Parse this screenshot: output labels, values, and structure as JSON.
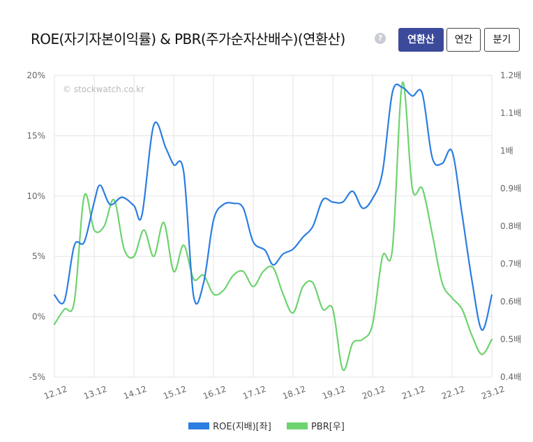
{
  "header": {
    "title": "ROE(자기자본이익률) & PBR(주가순자산배수)(연환산)",
    "help_glyph": "?",
    "buttons": [
      {
        "label": "연환산",
        "active": true
      },
      {
        "label": "연간",
        "active": false
      },
      {
        "label": "분기",
        "active": false
      }
    ]
  },
  "watermark": "© stockwatch.co.kr",
  "colors": {
    "roe": "#2a7de1",
    "pbr": "#6dd36e",
    "grid": "#e3e3e3",
    "axis_text": "#666666"
  },
  "chart_data": {
    "type": "line",
    "x_ticks": [
      "12.12",
      "13.12",
      "14.12",
      "15.12",
      "16.12",
      "17.12",
      "18.12",
      "19.12",
      "20.12",
      "21.12",
      "22.12",
      "23.12"
    ],
    "y_left": {
      "min": -5,
      "max": 20,
      "ticks": [
        -5,
        0,
        5,
        10,
        15,
        20
      ],
      "tick_labels": [
        "-5%",
        "0%",
        "5%",
        "10%",
        "15%",
        "20%"
      ]
    },
    "y_right": {
      "min": 0.4,
      "max": 1.2,
      "ticks": [
        0.4,
        0.5,
        0.6,
        0.7,
        0.8,
        0.9,
        1.0,
        1.1,
        1.2
      ],
      "tick_labels": [
        "0.4배",
        "0.5배",
        "0.6배",
        "0.7배",
        "0.8배",
        "0.9배",
        "1배",
        "1.1배",
        "1.2배"
      ]
    },
    "series": [
      {
        "name": "ROE(지배)[좌]",
        "axis": "left",
        "points": [
          [
            0.0,
            1.8
          ],
          [
            0.25,
            1.3
          ],
          [
            0.5,
            5.9
          ],
          [
            0.75,
            6.2
          ],
          [
            1.0,
            9.5
          ],
          [
            1.15,
            10.9
          ],
          [
            1.4,
            9.3
          ],
          [
            1.7,
            9.9
          ],
          [
            2.0,
            9.2
          ],
          [
            2.2,
            8.4
          ],
          [
            2.5,
            15.9
          ],
          [
            2.8,
            14.0
          ],
          [
            3.0,
            12.6
          ],
          [
            3.25,
            12.0
          ],
          [
            3.5,
            1.7
          ],
          [
            3.75,
            2.8
          ],
          [
            4.0,
            8.0
          ],
          [
            4.25,
            9.3
          ],
          [
            4.5,
            9.4
          ],
          [
            4.75,
            9.0
          ],
          [
            5.0,
            6.2
          ],
          [
            5.3,
            5.5
          ],
          [
            5.5,
            4.3
          ],
          [
            5.75,
            5.2
          ],
          [
            6.0,
            5.6
          ],
          [
            6.25,
            6.6
          ],
          [
            6.5,
            7.5
          ],
          [
            6.75,
            9.7
          ],
          [
            7.0,
            9.5
          ],
          [
            7.25,
            9.5
          ],
          [
            7.5,
            10.4
          ],
          [
            7.75,
            9.0
          ],
          [
            8.0,
            9.8
          ],
          [
            8.25,
            12.0
          ],
          [
            8.5,
            18.6
          ],
          [
            8.75,
            19.0
          ],
          [
            9.0,
            18.3
          ],
          [
            9.25,
            18.5
          ],
          [
            9.5,
            13.2
          ],
          [
            9.75,
            12.7
          ],
          [
            10.0,
            13.7
          ],
          [
            10.25,
            8.5
          ],
          [
            10.5,
            3.0
          ],
          [
            10.75,
            -1.1
          ],
          [
            11.0,
            1.8
          ]
        ]
      },
      {
        "name": "PBR[우]",
        "axis": "right",
        "points": [
          [
            0.0,
            0.54
          ],
          [
            0.25,
            0.58
          ],
          [
            0.5,
            0.6
          ],
          [
            0.75,
            0.88
          ],
          [
            1.0,
            0.79
          ],
          [
            1.25,
            0.8
          ],
          [
            1.5,
            0.87
          ],
          [
            1.75,
            0.74
          ],
          [
            2.0,
            0.72
          ],
          [
            2.25,
            0.79
          ],
          [
            2.5,
            0.72
          ],
          [
            2.75,
            0.81
          ],
          [
            3.0,
            0.68
          ],
          [
            3.25,
            0.75
          ],
          [
            3.5,
            0.66
          ],
          [
            3.75,
            0.67
          ],
          [
            4.0,
            0.62
          ],
          [
            4.25,
            0.63
          ],
          [
            4.5,
            0.67
          ],
          [
            4.75,
            0.68
          ],
          [
            5.0,
            0.64
          ],
          [
            5.25,
            0.68
          ],
          [
            5.5,
            0.69
          ],
          [
            5.75,
            0.62
          ],
          [
            6.0,
            0.57
          ],
          [
            6.25,
            0.64
          ],
          [
            6.5,
            0.65
          ],
          [
            6.75,
            0.58
          ],
          [
            7.0,
            0.58
          ],
          [
            7.25,
            0.42
          ],
          [
            7.5,
            0.49
          ],
          [
            7.75,
            0.5
          ],
          [
            8.0,
            0.54
          ],
          [
            8.25,
            0.72
          ],
          [
            8.5,
            0.74
          ],
          [
            8.75,
            1.18
          ],
          [
            9.0,
            0.9
          ],
          [
            9.25,
            0.9
          ],
          [
            9.5,
            0.78
          ],
          [
            9.75,
            0.65
          ],
          [
            10.0,
            0.61
          ],
          [
            10.25,
            0.58
          ],
          [
            10.5,
            0.51
          ],
          [
            10.75,
            0.46
          ],
          [
            11.0,
            0.5
          ]
        ]
      }
    ],
    "legend": [
      "ROE(지배)[좌]",
      "PBR[우]"
    ],
    "legend_position": "bottom",
    "grid": true
  }
}
